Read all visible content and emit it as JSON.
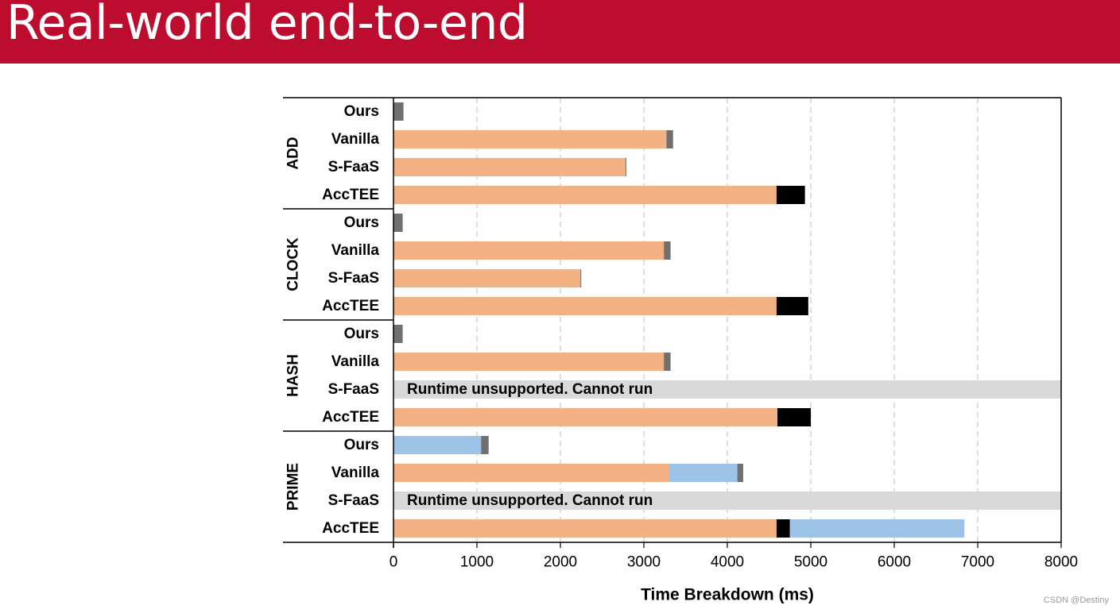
{
  "slide": {
    "title": "Real-world end-to-end"
  },
  "watermark": "CSDN @Destiny",
  "colors": {
    "title_bar": "#bc0d2e",
    "segment_orange": "#f4b183",
    "segment_gray": "#707070",
    "segment_black": "#000000",
    "segment_blue": "#9dc3e6",
    "unsupported_bg": "#d9d9d9"
  },
  "chart_data": {
    "type": "bar",
    "orientation": "horizontal",
    "stacked": true,
    "xlabel": "Time Breakdown (ms)",
    "xlim": [
      0,
      8000
    ],
    "xticks": [
      0,
      1000,
      2000,
      3000,
      4000,
      5000,
      6000,
      7000,
      8000
    ],
    "grid": "vertical dashed",
    "legend": "none",
    "groups": [
      {
        "name": "ADD",
        "rows": [
          {
            "label": "Ours",
            "segments": [
              {
                "color": "gray",
                "value": 120
              }
            ]
          },
          {
            "label": "Vanilla",
            "segments": [
              {
                "color": "orange",
                "value": 3270
              },
              {
                "color": "gray",
                "value": 80
              }
            ]
          },
          {
            "label": "S-FaaS",
            "segments": [
              {
                "color": "orange",
                "value": 2780
              },
              {
                "color": "gray",
                "value": 10
              }
            ]
          },
          {
            "label": "AccTEE",
            "segments": [
              {
                "color": "orange",
                "value": 4590
              },
              {
                "color": "black",
                "value": 340
              }
            ]
          }
        ]
      },
      {
        "name": "CLOCK",
        "rows": [
          {
            "label": "Ours",
            "segments": [
              {
                "color": "gray",
                "value": 110
              }
            ]
          },
          {
            "label": "Vanilla",
            "segments": [
              {
                "color": "orange",
                "value": 3240
              },
              {
                "color": "gray",
                "value": 80
              }
            ]
          },
          {
            "label": "S-FaaS",
            "segments": [
              {
                "color": "orange",
                "value": 2240
              },
              {
                "color": "gray",
                "value": 10
              }
            ]
          },
          {
            "label": "AccTEE",
            "segments": [
              {
                "color": "orange",
                "value": 4590
              },
              {
                "color": "black",
                "value": 380
              }
            ]
          }
        ]
      },
      {
        "name": "HASH",
        "rows": [
          {
            "label": "Ours",
            "segments": [
              {
                "color": "gray",
                "value": 110
              }
            ]
          },
          {
            "label": "Vanilla",
            "segments": [
              {
                "color": "orange",
                "value": 3240
              },
              {
                "color": "gray",
                "value": 80
              }
            ]
          },
          {
            "label": "S-FaaS",
            "segments": [],
            "note": "Runtime unsupported. Cannot run"
          },
          {
            "label": "AccTEE",
            "segments": [
              {
                "color": "orange",
                "value": 4600
              },
              {
                "color": "black",
                "value": 400
              }
            ]
          }
        ]
      },
      {
        "name": "PRIME",
        "rows": [
          {
            "label": "Ours",
            "segments": [
              {
                "color": "blue",
                "value": 1050
              },
              {
                "color": "gray",
                "value": 90
              }
            ]
          },
          {
            "label": "Vanilla",
            "segments": [
              {
                "color": "orange",
                "value": 3300
              },
              {
                "color": "blue",
                "value": 820
              },
              {
                "color": "gray",
                "value": 70
              }
            ]
          },
          {
            "label": "S-FaaS",
            "segments": [],
            "note": "Runtime unsupported. Cannot run"
          },
          {
            "label": "AccTEE",
            "segments": [
              {
                "color": "orange",
                "value": 4590
              },
              {
                "color": "black",
                "value": 160
              },
              {
                "color": "blue",
                "value": 2090
              }
            ]
          }
        ]
      }
    ]
  }
}
